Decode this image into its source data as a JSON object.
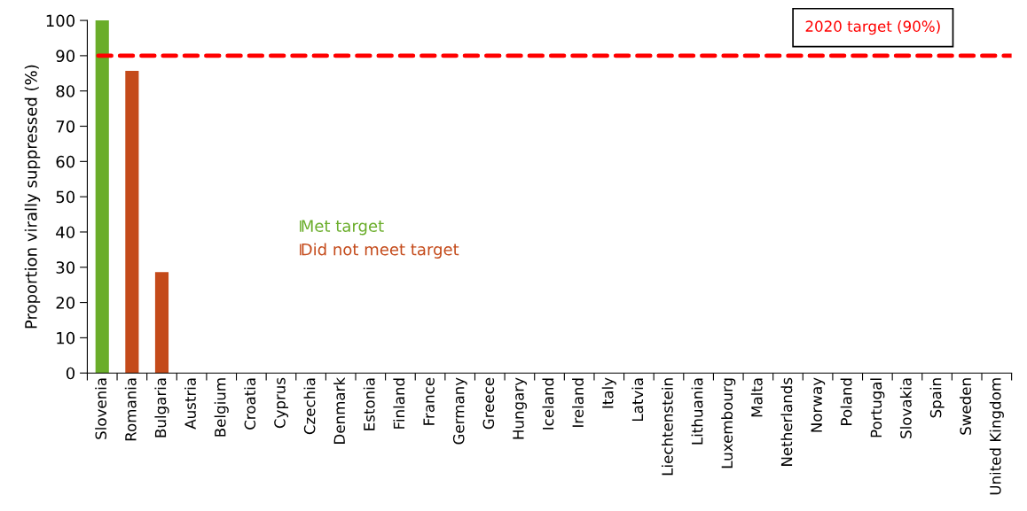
{
  "chart_data": {
    "type": "bar",
    "ylabel": "Proportion virally suppressed (%)",
    "categories": [
      "Slovenia",
      "Romania",
      "Bulgaria",
      "Austria",
      "Belgium",
      "Croatia",
      "Cyprus",
      "Czechia",
      "Denmark",
      "Estonia",
      "Finland",
      "France",
      "Germany",
      "Greece",
      "Hungary",
      "Iceland",
      "Ireland",
      "Italy",
      "Latvia",
      "Liechtenstein",
      "Lithuania",
      "Luxembourg",
      "Malta",
      "Netherlands",
      "Norway",
      "Poland",
      "Portugal",
      "Slovakia",
      "Spain",
      "Sweden",
      "United Kingdom"
    ],
    "series": [
      {
        "name": "Met target",
        "color": "#6aad2a",
        "values": [
          100,
          null,
          null,
          null,
          null,
          null,
          null,
          null,
          null,
          null,
          null,
          null,
          null,
          null,
          null,
          null,
          null,
          null,
          null,
          null,
          null,
          null,
          null,
          null,
          null,
          null,
          null,
          null,
          null,
          null,
          null
        ]
      },
      {
        "name": "Did not meet target",
        "color": "#c44a1a",
        "values": [
          null,
          85.7,
          28.6,
          null,
          null,
          null,
          null,
          null,
          null,
          null,
          null,
          null,
          null,
          null,
          null,
          null,
          null,
          null,
          null,
          null,
          null,
          null,
          null,
          null,
          null,
          null,
          null,
          null,
          null,
          null,
          null
        ]
      }
    ],
    "ylim": [
      0,
      100
    ],
    "yticks": [
      0,
      10,
      20,
      30,
      40,
      50,
      60,
      70,
      80,
      90,
      100
    ],
    "ref_lines": [
      {
        "axis": "y",
        "value": 90,
        "label": "2020 target (90%)",
        "color": "#ff0000",
        "line_style": "dashed"
      }
    ],
    "legend": "center left",
    "grid": false
  }
}
